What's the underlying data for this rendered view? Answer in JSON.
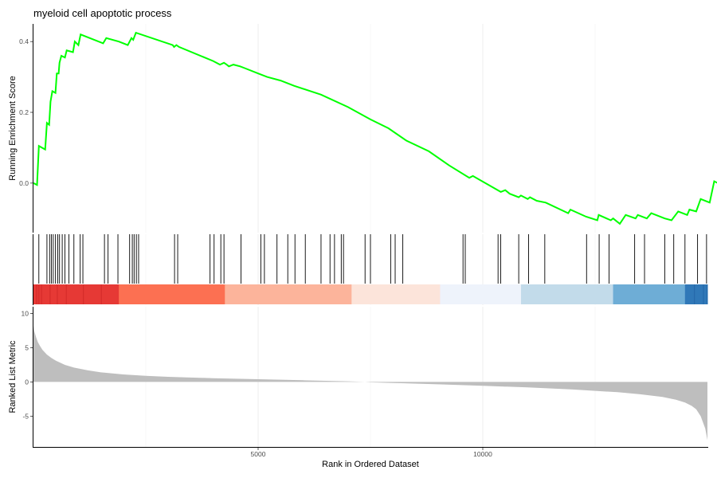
{
  "chart_data": {
    "type": "line",
    "title": "myeloid cell apoptotic process",
    "x_range": [
      0,
      15000
    ],
    "xlabel": "Rank in Ordered Dataset",
    "x_ticks": [
      5000,
      10000
    ],
    "x_tick_labels": [
      "5000",
      "10000"
    ],
    "running_score": {
      "ylabel": "Running Enrichment Score",
      "y_ticks": [
        0.0,
        0.2,
        0.4
      ],
      "y_tick_labels": [
        "0.0",
        "0.2",
        "0.4"
      ],
      "ylim": [
        -0.14,
        0.45
      ],
      "line_color": "#00FF00",
      "points": [
        [
          0,
          0.0
        ],
        [
          80,
          -0.005
        ],
        [
          120,
          0.105
        ],
        [
          260,
          0.095
        ],
        [
          300,
          0.17
        ],
        [
          350,
          0.165
        ],
        [
          380,
          0.23
        ],
        [
          420,
          0.26
        ],
        [
          490,
          0.255
        ],
        [
          520,
          0.31
        ],
        [
          560,
          0.31
        ],
        [
          580,
          0.34
        ],
        [
          620,
          0.36
        ],
        [
          700,
          0.355
        ],
        [
          740,
          0.375
        ],
        [
          880,
          0.37
        ],
        [
          920,
          0.4
        ],
        [
          1000,
          0.39
        ],
        [
          1050,
          0.42
        ],
        [
          1550,
          0.395
        ],
        [
          1620,
          0.41
        ],
        [
          1900,
          0.4
        ],
        [
          2100,
          0.39
        ],
        [
          2180,
          0.41
        ],
        [
          2220,
          0.405
        ],
        [
          2280,
          0.425
        ],
        [
          3100,
          0.39
        ],
        [
          3130,
          0.385
        ],
        [
          3180,
          0.39
        ],
        [
          3240,
          0.385
        ],
        [
          4000,
          0.345
        ],
        [
          4150,
          0.335
        ],
        [
          4240,
          0.34
        ],
        [
          4300,
          0.335
        ],
        [
          4350,
          0.33
        ],
        [
          4450,
          0.335
        ],
        [
          4600,
          0.33
        ],
        [
          4700,
          0.325
        ],
        [
          5000,
          0.31
        ],
        [
          5200,
          0.3
        ],
        [
          5500,
          0.29
        ],
        [
          5800,
          0.275
        ],
        [
          6400,
          0.25
        ],
        [
          7000,
          0.215
        ],
        [
          7500,
          0.18
        ],
        [
          7900,
          0.155
        ],
        [
          8300,
          0.12
        ],
        [
          8800,
          0.09
        ],
        [
          9250,
          0.05
        ],
        [
          9700,
          0.015
        ],
        [
          9780,
          0.02
        ],
        [
          10400,
          -0.025
        ],
        [
          10500,
          -0.02
        ],
        [
          10600,
          -0.03
        ],
        [
          10800,
          -0.04
        ],
        [
          10850,
          -0.035
        ],
        [
          11000,
          -0.045
        ],
        [
          11050,
          -0.04
        ],
        [
          11200,
          -0.05
        ],
        [
          11400,
          -0.055
        ],
        [
          11900,
          -0.085
        ],
        [
          11950,
          -0.075
        ],
        [
          12300,
          -0.095
        ],
        [
          12550,
          -0.105
        ],
        [
          12580,
          -0.09
        ],
        [
          12850,
          -0.105
        ],
        [
          12900,
          -0.1
        ],
        [
          13050,
          -0.115
        ],
        [
          13180,
          -0.09
        ],
        [
          13400,
          -0.1
        ],
        [
          13450,
          -0.09
        ],
        [
          13650,
          -0.1
        ],
        [
          13750,
          -0.085
        ],
        [
          14050,
          -0.1
        ],
        [
          14200,
          -0.105
        ],
        [
          14350,
          -0.08
        ],
        [
          14550,
          -0.09
        ],
        [
          14600,
          -0.075
        ],
        [
          14750,
          -0.08
        ],
        [
          14850,
          -0.045
        ],
        [
          15050,
          -0.055
        ],
        [
          15150,
          0.005
        ],
        [
          15230,
          0.0
        ]
      ]
    },
    "hit_positions": [
      120,
      300,
      360,
      400,
      440,
      490,
      540,
      580,
      640,
      700,
      790,
      900,
      1040,
      1100,
      1580,
      1660,
      1880,
      2140,
      2200,
      2240,
      2290,
      2340,
      3140,
      3210,
      3930,
      4020,
      4170,
      4240,
      4620,
      5060,
      5140,
      5420,
      5660,
      5820,
      6050,
      6400,
      6600,
      6700,
      6850,
      6900,
      7380,
      7500,
      7950,
      8050,
      8220,
      9560,
      9610,
      10340,
      10400,
      10800,
      11020,
      11380,
      12310,
      12590,
      12810,
      13380,
      13600,
      14050,
      14250,
      14500,
      14780,
      14980
    ],
    "colorbar": {
      "segments": [
        {
          "start": 0,
          "end": 1900,
          "color": "#E63935"
        },
        {
          "start": 1900,
          "end": 4260,
          "color": "#FC7052"
        },
        {
          "start": 4260,
          "end": 7080,
          "color": "#FCB49B"
        },
        {
          "start": 7080,
          "end": 9050,
          "color": "#FCE4DA"
        },
        {
          "start": 9050,
          "end": 10850,
          "color": "#EEF3FB"
        },
        {
          "start": 10850,
          "end": 12900,
          "color": "#C2DBEA"
        },
        {
          "start": 12900,
          "end": 14500,
          "color": "#6EADD6"
        },
        {
          "start": 14500,
          "end": 15000,
          "color": "#3078B8"
        }
      ],
      "stripe_colors": [
        "#C82020",
        "#1E5FA0"
      ]
    },
    "ranked_metric": {
      "ylabel": "Ranked List Metric",
      "y_ticks": [
        10,
        5,
        0,
        -5
      ],
      "y_tick_labels": [
        "10",
        "5",
        "0",
        "-5"
      ],
      "ylim": [
        -9.5,
        11
      ],
      "fill_color": "#BEBEBE",
      "x": [
        0,
        20,
        60,
        100,
        150,
        200,
        300,
        400,
        500,
        700,
        900,
        1200,
        1500,
        2000,
        2500,
        3000,
        4000,
        5000,
        6000,
        7000,
        7380,
        7500,
        8000,
        9000,
        10000,
        11000,
        12000,
        12500,
        13000,
        13500,
        14000,
        14300,
        14500,
        14650,
        14750,
        14850,
        14950,
        15000
      ],
      "y": [
        8.2,
        7.4,
        6.5,
        5.8,
        5.2,
        4.7,
        4.0,
        3.5,
        3.1,
        2.5,
        2.1,
        1.7,
        1.4,
        1.1,
        0.9,
        0.75,
        0.55,
        0.4,
        0.25,
        0.1,
        0.0,
        -0.05,
        -0.15,
        -0.35,
        -0.55,
        -0.8,
        -1.1,
        -1.3,
        -1.5,
        -1.8,
        -2.2,
        -2.6,
        -3.0,
        -3.5,
        -4.0,
        -5.0,
        -6.8,
        -8.5
      ]
    }
  }
}
